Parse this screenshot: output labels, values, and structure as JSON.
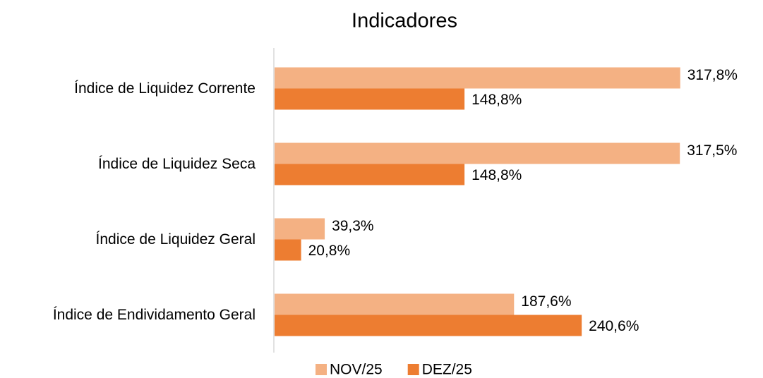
{
  "chart_data": {
    "type": "hbar",
    "title": "Indicadores",
    "categories": [
      "Índice de Liquidez Corrente",
      "Índice de Liquidez Seca",
      "Índice de Liquidez Geral",
      "Índice de Endividamento Geral"
    ],
    "series": [
      {
        "name": "NOV/25",
        "color": "#f4b183",
        "values": [
          317.8,
          317.5,
          39.3,
          187.6
        ],
        "value_labels": [
          "317,8%",
          "317,5%",
          "39,3%",
          "187,6%"
        ]
      },
      {
        "name": "DEZ/25",
        "color": "#ed7d31",
        "values": [
          148.8,
          148.8,
          20.8,
          240.6
        ],
        "value_labels": [
          "148,8%",
          "148,8%",
          "20,8%",
          "240,6%"
        ]
      }
    ],
    "xlim": [
      0,
      350
    ],
    "legend": "bottom"
  }
}
